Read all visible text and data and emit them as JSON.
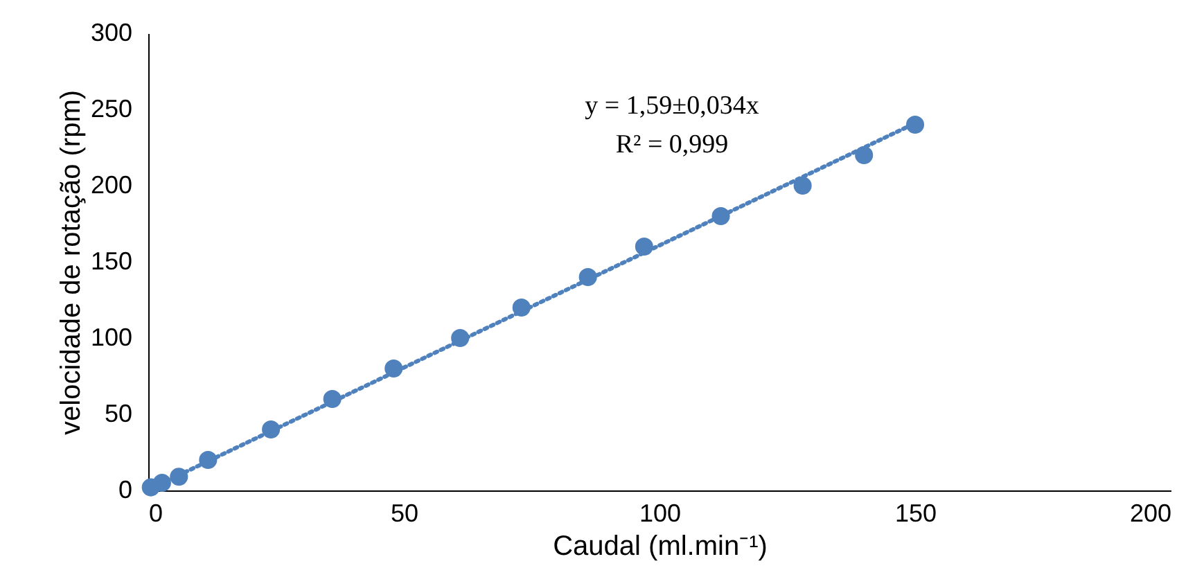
{
  "chart_data": {
    "type": "scatter",
    "xlabel": "Caudal (ml.min⁻¹)",
    "ylabel": "velocidade  de rotação (rpm)",
    "annotations": [
      "y = 1,59±0,034x",
      "R² = 0,999"
    ],
    "xlim": [
      0,
      200
    ],
    "ylim": [
      0,
      300
    ],
    "xticks": [
      0,
      50,
      100,
      150,
      200
    ],
    "yticks": [
      0,
      50,
      100,
      150,
      200,
      250,
      300
    ],
    "grid": false,
    "legend": false,
    "marker": "circle",
    "series": [
      {
        "color": "#4f81bd",
        "x": [
          0.5,
          2.7,
          6,
          11.7,
          24,
          36,
          48,
          61,
          73,
          86,
          97,
          112,
          128,
          140,
          150
        ],
        "values": [
          2,
          5,
          9,
          20,
          40,
          60,
          80,
          100,
          120,
          140,
          160,
          180,
          200,
          220,
          240
        ]
      },
      {
        "type": "line",
        "marker": "none",
        "color": "#4f81bd",
        "line_style": "dotted",
        "x": [
          1,
          150
        ],
        "values": [
          2,
          241
        ]
      }
    ]
  }
}
